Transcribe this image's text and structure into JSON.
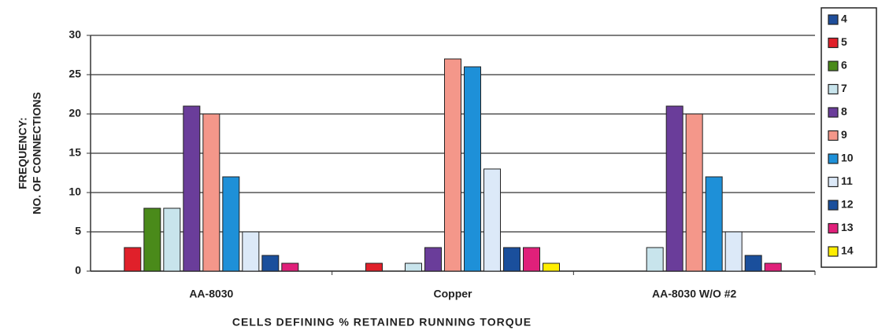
{
  "chart_data": {
    "type": "bar",
    "y_label": [
      "FREQUENCY:",
      "NO. OF CONNECTIONS"
    ],
    "x_label": "CELLS DEFINING % RETAINED RUNNING TORQUE",
    "categories": [
      "AA-8030",
      "Copper",
      "AA-8030 W/O #2"
    ],
    "ylim": [
      0,
      30
    ],
    "yticks": [
      0,
      5,
      10,
      15,
      20,
      25,
      30
    ],
    "grid": true,
    "legend": "right",
    "series": [
      {
        "name": "4",
        "color": "#1f4e9a",
        "values": [
          0,
          0,
          0
        ]
      },
      {
        "name": "5",
        "color": "#e0202a",
        "values": [
          3,
          1,
          0
        ]
      },
      {
        "name": "6",
        "color": "#4a8a1a",
        "values": [
          8,
          0,
          0
        ]
      },
      {
        "name": "7",
        "color": "#c8e4ec",
        "values": [
          8,
          1,
          3
        ]
      },
      {
        "name": "8",
        "color": "#6a3d9a",
        "values": [
          21,
          3,
          21
        ]
      },
      {
        "name": "9",
        "color": "#f4978a",
        "values": [
          20,
          27,
          20
        ]
      },
      {
        "name": "10",
        "color": "#1e90d8",
        "values": [
          12,
          26,
          12
        ]
      },
      {
        "name": "11",
        "color": "#dce9f8",
        "values": [
          5,
          13,
          5
        ]
      },
      {
        "name": "12",
        "color": "#1a4f9c",
        "values": [
          2,
          3,
          2
        ]
      },
      {
        "name": "13",
        "color": "#e0207a",
        "values": [
          1,
          3,
          1
        ]
      },
      {
        "name": "14",
        "color": "#ffee00",
        "values": [
          0,
          1,
          0
        ]
      }
    ]
  }
}
